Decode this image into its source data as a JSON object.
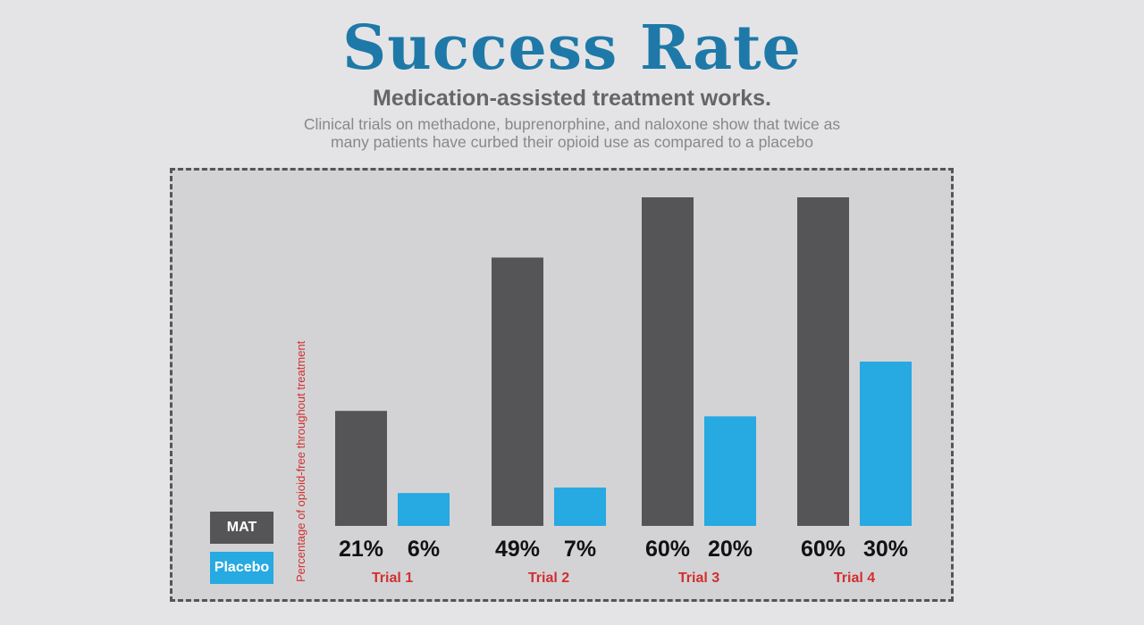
{
  "header": {
    "title": "Success Rate",
    "subtitle": "Medication-assisted treatment works.",
    "description_line1": "Clinical trials on methadone, buprenorphine, and naloxone show that twice as",
    "description_line2": "many patients have curbed their opioid use as compared to a placebo"
  },
  "colors": {
    "title": "#1e79a8",
    "subtitle": "#666666",
    "description": "#888888",
    "mat": "#555557",
    "placebo": "#27a9e1",
    "trial_label": "#d22f2f",
    "value_label": "#111111",
    "ylabel": "#d22f2f"
  },
  "legend": {
    "mat": "MAT",
    "placebo": "Placebo"
  },
  "chart_data": {
    "type": "bar",
    "title": "Success Rate",
    "ylabel": "Percentage of opioid-free throughout treatment",
    "categories": [
      "Trial 1",
      "Trial 2",
      "Trial 3",
      "Trial 4"
    ],
    "series": [
      {
        "name": "MAT",
        "values": [
          21,
          49,
          60,
          60
        ],
        "labels": [
          "21%",
          "49%",
          "60%",
          "60%"
        ]
      },
      {
        "name": "Placebo",
        "values": [
          6,
          7,
          20,
          30
        ],
        "labels": [
          "6%",
          "7%",
          "20%",
          "30%"
        ]
      }
    ],
    "ylim": [
      0,
      60
    ],
    "grid": false,
    "legend": "bottom-left"
  }
}
